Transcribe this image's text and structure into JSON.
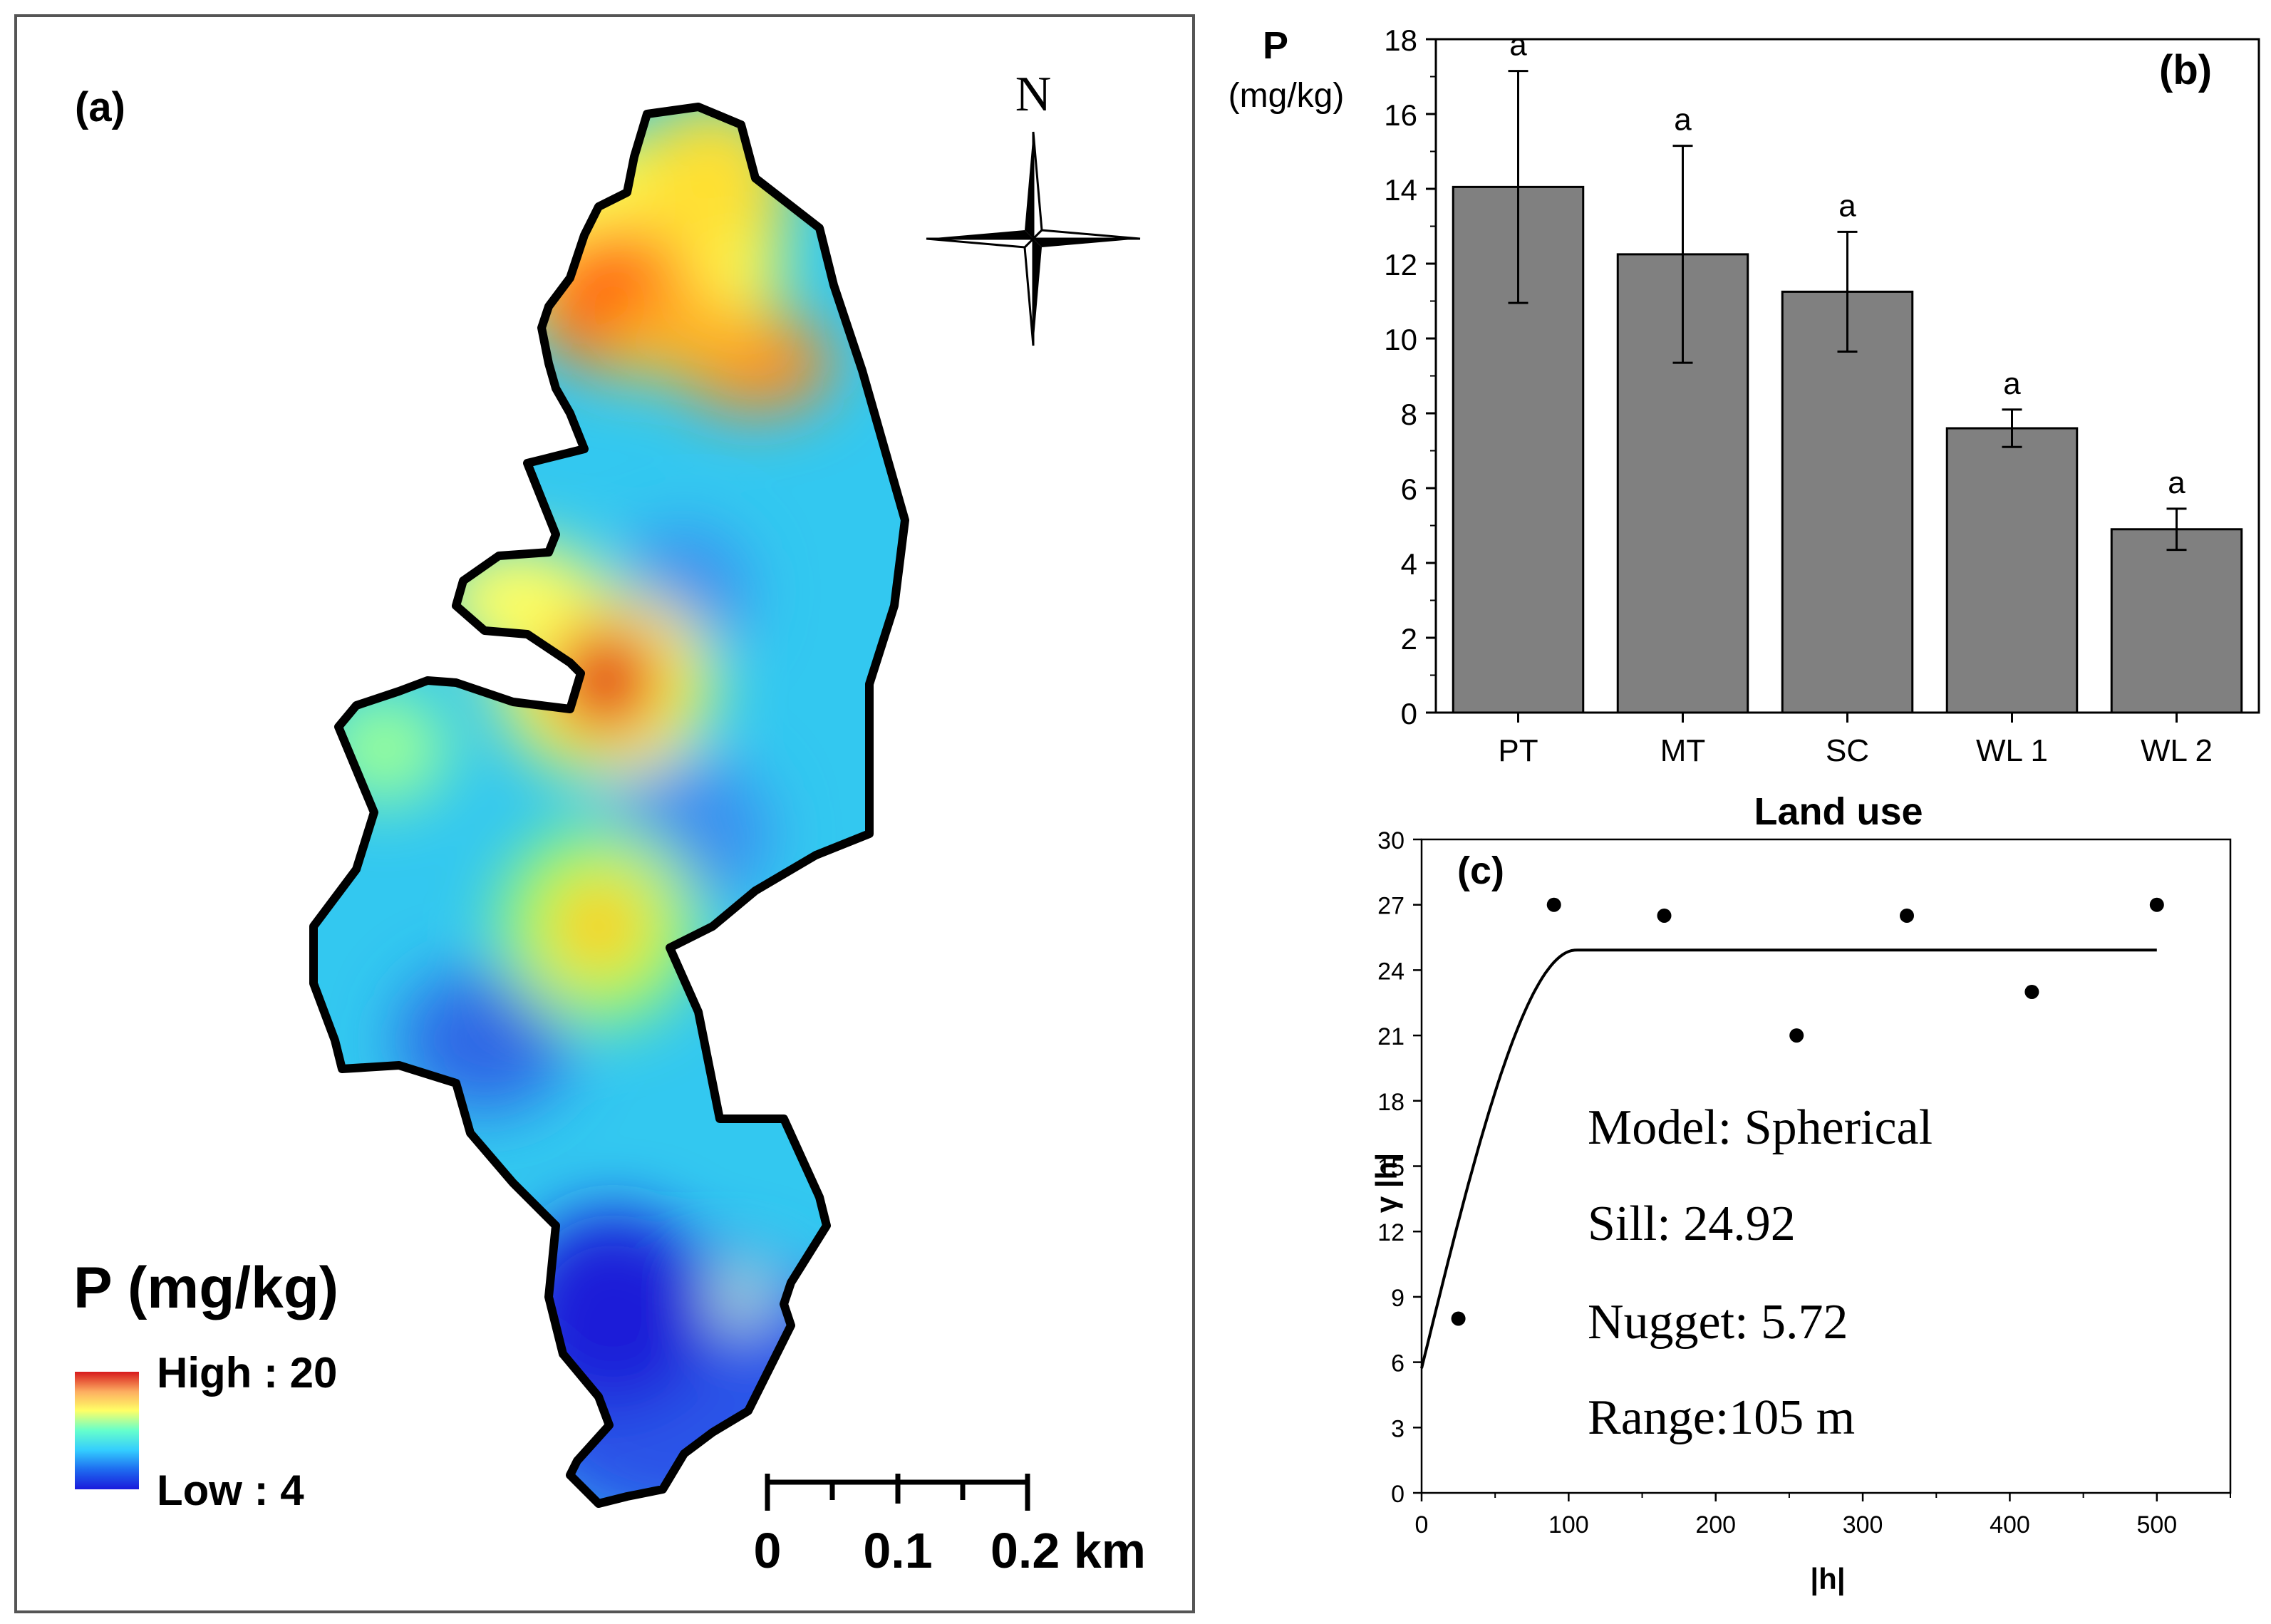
{
  "panel_a": {
    "label": "(a)",
    "north_label": "N",
    "legend": {
      "title": "P (mg/kg)",
      "high_label": "High : 20",
      "low_label": "Low : 4",
      "colors": [
        "#d7191c",
        "#fdae61",
        "#ffff66",
        "#66ffcc",
        "#33ccff",
        "#1e6cf0",
        "#1a1adc"
      ]
    },
    "scale_bar": {
      "labels": [
        "0",
        "0.1",
        "0.2 km"
      ]
    }
  },
  "chart_data": [
    {
      "type": "bar",
      "panel_label": "(b)",
      "ylabel_line1": "P",
      "ylabel_line2": "(mg/kg)",
      "xlabel": "Land use",
      "categories": [
        "PT",
        "MT",
        "SC",
        "WL 1",
        "WL 2"
      ],
      "values": [
        14.05,
        12.25,
        11.25,
        7.6,
        4.9
      ],
      "errors": [
        3.1,
        2.9,
        1.6,
        0.5,
        0.55
      ],
      "significance_letters": [
        "a",
        "a",
        "a",
        "a",
        "a"
      ],
      "ylim": [
        0,
        18
      ],
      "yticks": [
        "0",
        "2",
        "4",
        "6",
        "8",
        "10",
        "12",
        "14",
        "16",
        "18"
      ],
      "bar_color": "#808080"
    },
    {
      "type": "scatter",
      "panel_label": "(c)",
      "xlabel": "|h|",
      "ylabel": "γ |h|",
      "xlim": [
        0,
        550
      ],
      "ylim": [
        0,
        30
      ],
      "xticks": [
        "0",
        "100",
        "200",
        "300",
        "400",
        "500"
      ],
      "yticks": [
        "0",
        "3",
        "6",
        "9",
        "12",
        "15",
        "18",
        "21",
        "24",
        "27",
        "30"
      ],
      "points": {
        "x": [
          25,
          90,
          165,
          255,
          330,
          415,
          500
        ],
        "y": [
          8,
          27,
          26.5,
          21,
          26.5,
          23,
          27
        ]
      },
      "model": {
        "type": "spherical",
        "nugget": 5.72,
        "sill": 24.92,
        "range": 105,
        "x_max": 500
      },
      "annotations": [
        "Model: Spherical",
        "Sill: 24.92",
        "Nugget: 5.72",
        "Range:105 m"
      ]
    }
  ]
}
